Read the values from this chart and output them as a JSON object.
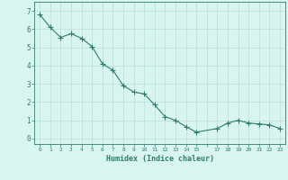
{
  "x": [
    0,
    1,
    2,
    3,
    4,
    5,
    6,
    7,
    8,
    9,
    10,
    11,
    12,
    13,
    14,
    15,
    17,
    18,
    19,
    20,
    21,
    22,
    23
  ],
  "y": [
    6.8,
    6.1,
    5.55,
    5.75,
    5.5,
    5.05,
    4.1,
    3.75,
    2.9,
    2.55,
    2.45,
    1.85,
    1.2,
    1.0,
    0.65,
    0.35,
    0.55,
    0.85,
    1.0,
    0.85,
    0.8,
    0.75,
    0.55
  ],
  "line_color": "#2e7d6e",
  "marker": "D",
  "marker_size": 2.2,
  "bg_color": "#d8f5f0",
  "grid_color": "#b8ddd8",
  "xlabel": "Humidex (Indice chaleur)",
  "xlim": [
    -0.5,
    23.5
  ],
  "ylim": [
    -0.3,
    7.5
  ],
  "xtick_labels": [
    "0",
    "1",
    "2",
    "3",
    "4",
    "5",
    "6",
    "7",
    "8",
    "9",
    "10",
    "11",
    "12",
    "13",
    "14",
    "15",
    "",
    "17",
    "18",
    "19",
    "20",
    "21",
    "22",
    "23"
  ],
  "ytick_vals": [
    0,
    1,
    2,
    3,
    4,
    5,
    6,
    7
  ],
  "axis_color": "#2e7d6e",
  "tick_color": "#2e7d6e",
  "label_color": "#2e7d6e"
}
